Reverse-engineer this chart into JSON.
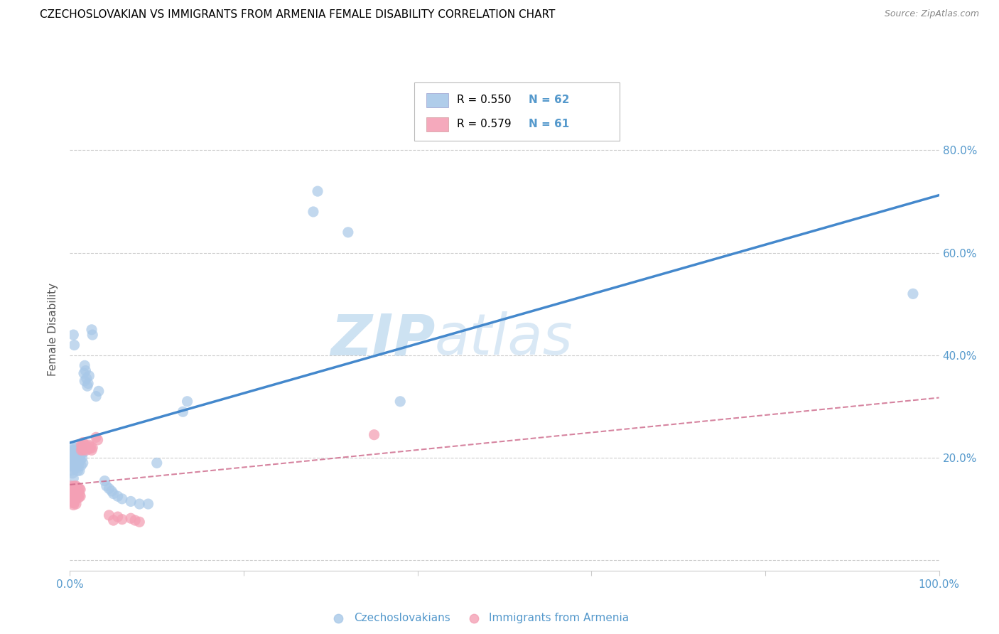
{
  "title": "CZECHOSLOVAKIAN VS IMMIGRANTS FROM ARMENIA FEMALE DISABILITY CORRELATION CHART",
  "source": "Source: ZipAtlas.com",
  "ylabel": "Female Disability",
  "xlim": [
    0.0,
    1.0
  ],
  "ylim": [
    -0.02,
    0.92
  ],
  "plot_ylim": [
    0.0,
    0.9
  ],
  "xticks": [
    0.0,
    0.2,
    0.4,
    0.6,
    0.8,
    1.0
  ],
  "xtick_labels": [
    "0.0%",
    "",
    "",
    "",
    "",
    "100.0%"
  ],
  "yticks": [
    0.0,
    0.2,
    0.4,
    0.6,
    0.8
  ],
  "ytick_labels_right": [
    "",
    "20.0%",
    "40.0%",
    "60.0%",
    "80.0%"
  ],
  "legend_r_blue": "R = 0.550",
  "legend_n_blue": "N = 62",
  "legend_r_pink": "R = 0.579",
  "legend_n_pink": "N = 61",
  "watermark_zip": "ZIP",
  "watermark_atlas": "atlas",
  "blue_color": "#a8c8e8",
  "pink_color": "#f4a0b5",
  "blue_line_color": "#4488cc",
  "pink_line_color": "#cc6688",
  "axis_color": "#5599cc",
  "grid_color": "#cccccc",
  "blue_scatter": [
    [
      0.001,
      0.195
    ],
    [
      0.001,
      0.175
    ],
    [
      0.002,
      0.215
    ],
    [
      0.002,
      0.2
    ],
    [
      0.003,
      0.185
    ],
    [
      0.003,
      0.21
    ],
    [
      0.003,
      0.17
    ],
    [
      0.004,
      0.22
    ],
    [
      0.004,
      0.2
    ],
    [
      0.004,
      0.16
    ],
    [
      0.005,
      0.215
    ],
    [
      0.005,
      0.19
    ],
    [
      0.005,
      0.18
    ],
    [
      0.006,
      0.205
    ],
    [
      0.006,
      0.185
    ],
    [
      0.007,
      0.195
    ],
    [
      0.007,
      0.22
    ],
    [
      0.008,
      0.18
    ],
    [
      0.008,
      0.195
    ],
    [
      0.009,
      0.175
    ],
    [
      0.009,
      0.21
    ],
    [
      0.01,
      0.2
    ],
    [
      0.01,
      0.185
    ],
    [
      0.011,
      0.175
    ],
    [
      0.011,
      0.215
    ],
    [
      0.012,
      0.195
    ],
    [
      0.012,
      0.205
    ],
    [
      0.013,
      0.185
    ],
    [
      0.013,
      0.22
    ],
    [
      0.014,
      0.2
    ],
    [
      0.015,
      0.19
    ],
    [
      0.015,
      0.21
    ],
    [
      0.016,
      0.365
    ],
    [
      0.017,
      0.38
    ],
    [
      0.017,
      0.35
    ],
    [
      0.018,
      0.37
    ],
    [
      0.019,
      0.355
    ],
    [
      0.02,
      0.34
    ],
    [
      0.021,
      0.345
    ],
    [
      0.022,
      0.36
    ],
    [
      0.025,
      0.45
    ],
    [
      0.026,
      0.44
    ],
    [
      0.004,
      0.44
    ],
    [
      0.005,
      0.42
    ],
    [
      0.03,
      0.32
    ],
    [
      0.033,
      0.33
    ],
    [
      0.04,
      0.155
    ],
    [
      0.042,
      0.145
    ],
    [
      0.045,
      0.14
    ],
    [
      0.048,
      0.135
    ],
    [
      0.05,
      0.13
    ],
    [
      0.055,
      0.125
    ],
    [
      0.06,
      0.12
    ],
    [
      0.07,
      0.115
    ],
    [
      0.08,
      0.11
    ],
    [
      0.09,
      0.11
    ],
    [
      0.1,
      0.19
    ],
    [
      0.13,
      0.29
    ],
    [
      0.135,
      0.31
    ],
    [
      0.28,
      0.68
    ],
    [
      0.285,
      0.72
    ],
    [
      0.32,
      0.64
    ],
    [
      0.38,
      0.31
    ],
    [
      0.97,
      0.52
    ]
  ],
  "pink_scatter": [
    [
      0.0,
      0.135
    ],
    [
      0.0,
      0.125
    ],
    [
      0.001,
      0.145
    ],
    [
      0.001,
      0.13
    ],
    [
      0.001,
      0.12
    ],
    [
      0.002,
      0.14
    ],
    [
      0.002,
      0.128
    ],
    [
      0.002,
      0.118
    ],
    [
      0.003,
      0.138
    ],
    [
      0.003,
      0.125
    ],
    [
      0.003,
      0.112
    ],
    [
      0.004,
      0.142
    ],
    [
      0.004,
      0.13
    ],
    [
      0.004,
      0.115
    ],
    [
      0.004,
      0.108
    ],
    [
      0.005,
      0.145
    ],
    [
      0.005,
      0.135
    ],
    [
      0.005,
      0.122
    ],
    [
      0.005,
      0.112
    ],
    [
      0.006,
      0.14
    ],
    [
      0.006,
      0.128
    ],
    [
      0.006,
      0.118
    ],
    [
      0.007,
      0.145
    ],
    [
      0.007,
      0.132
    ],
    [
      0.007,
      0.12
    ],
    [
      0.007,
      0.11
    ],
    [
      0.008,
      0.138
    ],
    [
      0.008,
      0.125
    ],
    [
      0.009,
      0.142
    ],
    [
      0.009,
      0.128
    ],
    [
      0.01,
      0.135
    ],
    [
      0.01,
      0.122
    ],
    [
      0.011,
      0.14
    ],
    [
      0.011,
      0.128
    ],
    [
      0.012,
      0.138
    ],
    [
      0.012,
      0.125
    ],
    [
      0.013,
      0.215
    ],
    [
      0.013,
      0.225
    ],
    [
      0.014,
      0.22
    ],
    [
      0.015,
      0.215
    ],
    [
      0.015,
      0.23
    ],
    [
      0.016,
      0.222
    ],
    [
      0.017,
      0.218
    ],
    [
      0.018,
      0.225
    ],
    [
      0.019,
      0.215
    ],
    [
      0.02,
      0.22
    ],
    [
      0.022,
      0.225
    ],
    [
      0.023,
      0.218
    ],
    [
      0.024,
      0.222
    ],
    [
      0.025,
      0.215
    ],
    [
      0.026,
      0.22
    ],
    [
      0.03,
      0.24
    ],
    [
      0.032,
      0.235
    ],
    [
      0.045,
      0.088
    ],
    [
      0.05,
      0.078
    ],
    [
      0.055,
      0.085
    ],
    [
      0.06,
      0.08
    ],
    [
      0.07,
      0.082
    ],
    [
      0.075,
      0.078
    ],
    [
      0.08,
      0.075
    ],
    [
      0.35,
      0.245
    ]
  ]
}
